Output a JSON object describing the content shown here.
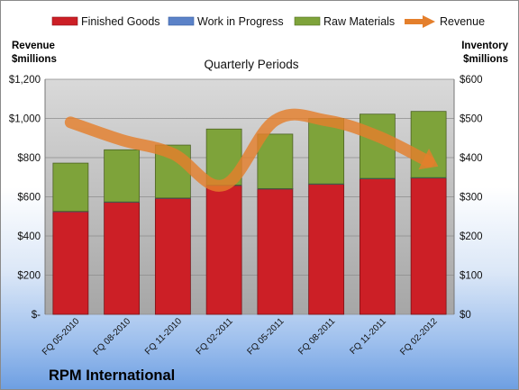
{
  "company": "RPM International",
  "chart_data": {
    "type": "bar",
    "title": "Quarterly Periods",
    "categories": [
      "FQ 05-2010",
      "FQ 08-2010",
      "FQ 11-2010",
      "FQ 02-2011",
      "FQ 05-2011",
      "FQ 08-2011",
      "FQ 11-2011",
      "FQ 02-2012"
    ],
    "y_left": {
      "label_lines": [
        "Revenue",
        "$millions"
      ],
      "ticks": [
        "$-",
        "$200",
        "$400",
        "$600",
        "$800",
        "$1,000",
        "$1,200"
      ],
      "ylim": [
        0,
        1200
      ]
    },
    "y_right": {
      "label_lines": [
        "Inventory",
        "$millions"
      ],
      "ticks": [
        "$0",
        "$100",
        "$200",
        "$300",
        "$400",
        "$500",
        "$600"
      ],
      "ylim": [
        0,
        600
      ]
    },
    "series": [
      {
        "name": "Finished Goods",
        "axis": "right",
        "kind": "stacked-bar",
        "color": "#cc1f26",
        "values": [
          262,
          286,
          296,
          329,
          320,
          332,
          346,
          348
        ]
      },
      {
        "name": "Work in Progress",
        "axis": "right",
        "kind": "stacked-bar",
        "color": "#5b82c8",
        "values": [
          1,
          1,
          1,
          1,
          1,
          1,
          1,
          1
        ]
      },
      {
        "name": "Raw Materials",
        "axis": "right",
        "kind": "stacked-bar",
        "color": "#7ea33a",
        "values": [
          123,
          133,
          135,
          143,
          139,
          167,
          164,
          169
        ]
      },
      {
        "name": "Revenue",
        "axis": "left",
        "kind": "line",
        "color": "#e47f2c",
        "values": [
          980,
          890,
          820,
          660,
          990,
          990,
          910,
          780
        ]
      }
    ],
    "legend_position": "top",
    "grid": true
  }
}
